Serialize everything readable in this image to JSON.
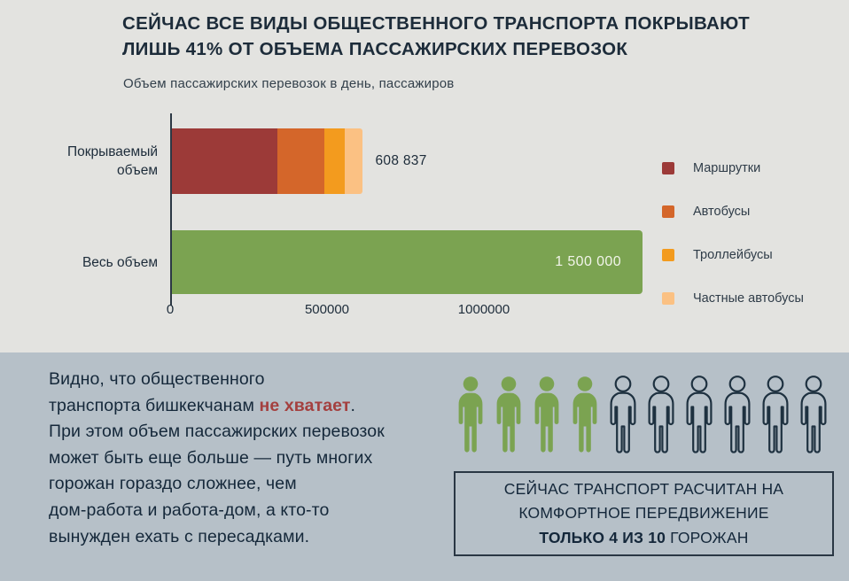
{
  "header": {
    "title_line1": "СЕЙЧАС ВСЕ ВИДЫ ОБЩЕСТВЕННОГО ТРАНСПОРТА ПОКРЫВАЮТ",
    "title_line2_emphasis": "ЛИШЬ 41%",
    "title_line2_rest": " ОТ ОБЪЕМА ПАССАЖИРСКИХ ПЕРЕВОЗОК",
    "subtitle": "Объем пассажирских перевозок в день, пассажиров"
  },
  "chart_data": {
    "type": "bar",
    "orientation": "horizontal",
    "title": "Объем пассажирских перевозок в день, пассажиров",
    "categories": [
      "Покрываемый объем",
      "Весь объем"
    ],
    "x_axis": {
      "max": 1500000,
      "ticks": [
        {
          "value": 0,
          "label": "0"
        },
        {
          "value": 500000,
          "label": "500000"
        },
        {
          "value": 1000000,
          "label": "1000000"
        }
      ]
    },
    "grid": false,
    "bars": [
      {
        "category": "Покрываемый объем",
        "total": 608837,
        "total_label": "608 837",
        "segments": [
          {
            "name": "Маршрутки",
            "value": 335000,
            "color": "#9c3a38"
          },
          {
            "name": "Автобусы",
            "value": 152000,
            "color": "#d4662a"
          },
          {
            "name": "Троллейбусы",
            "value": 65000,
            "color": "#f39b1e"
          },
          {
            "name": "Частные автобусы",
            "value": 56837,
            "color": "#fbc183"
          }
        ]
      },
      {
        "category": "Весь объем",
        "total": 1500000,
        "total_label": "1 500 000",
        "color": "#7ba351"
      }
    ],
    "legend": {
      "position": "right",
      "items": [
        {
          "label": "Маршрутки",
          "color": "#9c3a38"
        },
        {
          "label": "Автобусы",
          "color": "#d4662a"
        },
        {
          "label": "Троллейбусы",
          "color": "#f39b1e"
        },
        {
          "label": "Частные автобусы",
          "color": "#fbc183"
        }
      ]
    }
  },
  "bottom_panel": {
    "paragraph_lines": [
      {
        "text": "Видно, что общественного"
      },
      {
        "text": "транспорта бишкекчанам ",
        "emphasis": "не хватает",
        "tail": "."
      },
      {
        "text": "При этом объем пассажирских перевозок"
      },
      {
        "text": "может быть еще больше — путь многих"
      },
      {
        "text": "горожан гораздо сложнее, чем"
      },
      {
        "text": "дом-работа и работа-дом, а кто-то"
      },
      {
        "text": "вынужден ехать с пересадками."
      }
    ],
    "pictogram": {
      "total": 10,
      "highlighted": 4,
      "highlight_color": "#7ba351",
      "outline_color": "#1e3140"
    },
    "callout": {
      "line1": "СЕЙЧАС ТРАНСПОРТ РАСЧИТАН НА",
      "line2": "КОМФОРТНОЕ ПЕРЕДВИЖЕНИЕ",
      "line3_bold": "ТОЛЬКО 4 ИЗ 10",
      "line3_rest": " ГОРОЖАН"
    }
  },
  "colors": {
    "top_background": "#e3e3e0",
    "bottom_background": "#b6c0c8",
    "text_dark": "#1d2c3a",
    "emphasis_red": "#a4403f",
    "bar_green": "#7ba351",
    "axis_line": "#2c3844"
  }
}
